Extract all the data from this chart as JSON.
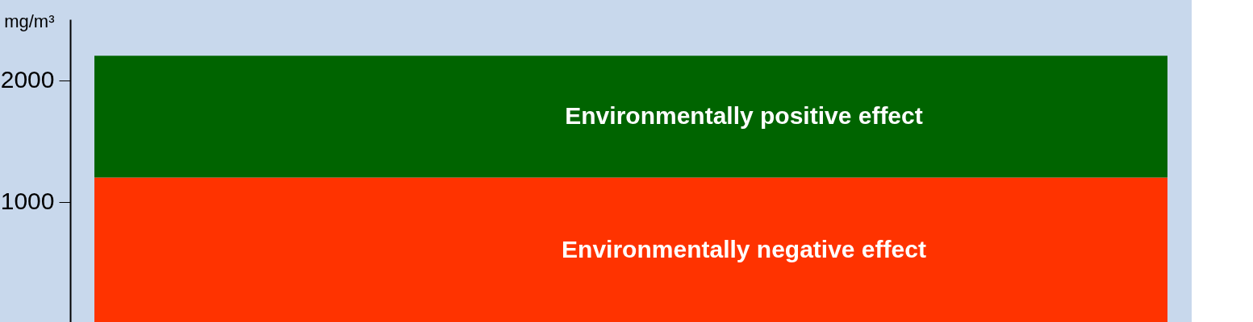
{
  "chart_data": {
    "type": "bar",
    "stacked": true,
    "ylabel": "mg/m³",
    "categories": [
      null
    ],
    "series": [
      {
        "name": "Environmentally negative effect",
        "color": "#ff3300",
        "values": [
          1200
        ]
      },
      {
        "name": "Environmentally positive effect",
        "color": "#006400",
        "values": [
          1000
        ]
      }
    ],
    "ylim": [
      0,
      2500
    ],
    "yticks": [
      1000,
      2000
    ],
    "grid": false,
    "tick_labels": "y"
  }
}
